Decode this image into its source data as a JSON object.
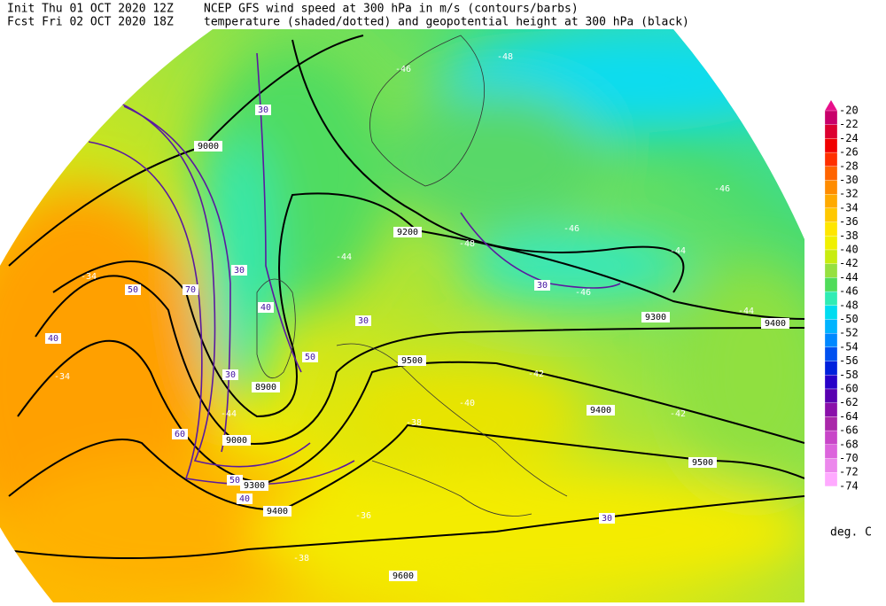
{
  "header": {
    "init": "Init   Thu 01 OCT 2020 12Z",
    "fcst": "Fcst Fri 02 OCT 2020 18Z",
    "line1": "NCEP GFS wind speed at 300 hPa in m/s (contours/barbs)",
    "line2": "temperature (shaded/dotted) and geopotential height at 300 hPa (black)"
  },
  "colorbar": {
    "unit": "deg. C",
    "levels": [
      {
        "label": "-20",
        "color": "#e8108a"
      },
      {
        "label": "-22",
        "color": "#c8006a"
      },
      {
        "label": "-24",
        "color": "#dc0030"
      },
      {
        "label": "-26",
        "color": "#f00000"
      },
      {
        "label": "-28",
        "color": "#ff3000"
      },
      {
        "label": "-30",
        "color": "#ff6400"
      },
      {
        "label": "-32",
        "color": "#ff8c00"
      },
      {
        "label": "-34",
        "color": "#ffaa00"
      },
      {
        "label": "-36",
        "color": "#ffc800"
      },
      {
        "label": "-38",
        "color": "#ffe600"
      },
      {
        "label": "-40",
        "color": "#f0f000"
      },
      {
        "label": "-42",
        "color": "#c8ec10"
      },
      {
        "label": "-44",
        "color": "#96e040"
      },
      {
        "label": "-46",
        "color": "#50dc5a"
      },
      {
        "label": "-48",
        "color": "#30ecb4"
      },
      {
        "label": "-50",
        "color": "#00dcf0"
      },
      {
        "label": "-52",
        "color": "#00b4ff"
      },
      {
        "label": "-54",
        "color": "#0088ff"
      },
      {
        "label": "-56",
        "color": "#0050f0"
      },
      {
        "label": "-58",
        "color": "#0020dc"
      },
      {
        "label": "-60",
        "color": "#2800c8"
      },
      {
        "label": "-62",
        "color": "#5800b0"
      },
      {
        "label": "-64",
        "color": "#8a10aa"
      },
      {
        "label": "-66",
        "color": "#aa28aa"
      },
      {
        "label": "-68",
        "color": "#c846c8"
      },
      {
        "label": "-70",
        "color": "#dc64dc"
      },
      {
        "label": "-72",
        "color": "#ec88ec"
      },
      {
        "label": "-74",
        "color": "#ffaaff"
      }
    ]
  },
  "map": {
    "labels": [
      "9000",
      "9200",
      "9300",
      "9400",
      "9500",
      "9400",
      "9500",
      "9600",
      "8900",
      "9000",
      "9300",
      "9400",
      "-46",
      "-48",
      "-48",
      "-46",
      "-44",
      "-42",
      "-42",
      "-40",
      "-38",
      "-38",
      "-36",
      "-34",
      "-34",
      "-44",
      "-46",
      "-44",
      "-46",
      "-44",
      "30",
      "30",
      "40",
      "30",
      "50",
      "30",
      "60",
      "50",
      "70",
      "40",
      "30",
      "40",
      "30",
      "50"
    ]
  }
}
